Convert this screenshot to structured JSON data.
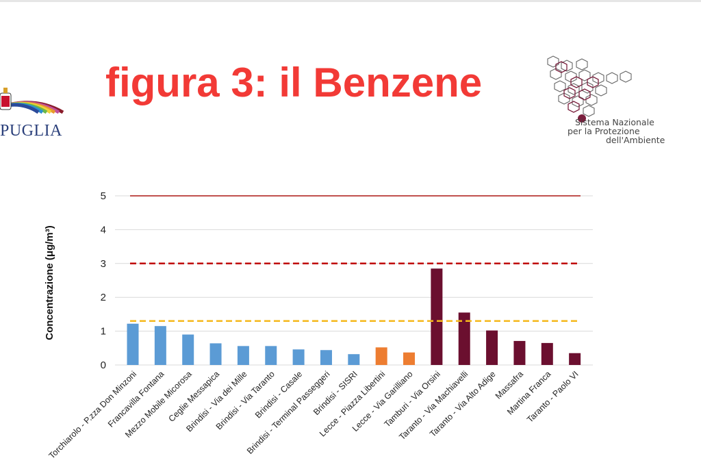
{
  "title": "figura 3: il Benzene",
  "logo_left": {
    "text": "PUGLIA"
  },
  "logo_right": {
    "lines": [
      "Sistema Nazionale",
      "per la Protezione",
      "dell'Ambiente"
    ]
  },
  "chart_data": {
    "type": "bar",
    "ylabel": "Concentrazione (μg/m³)",
    "ylim": [
      0,
      5
    ],
    "yticks": [
      "0",
      "1",
      "2",
      "3",
      "4",
      "5"
    ],
    "grid": true,
    "categories": [
      "Torchiarolo - P.zza Don Minzoni",
      "Francavilla Fontana",
      "Mezzo Mobile Micorosa",
      "Ceglie Messapica",
      "Brindisi - Via dei Mille",
      "Brindisi - Via Taranto",
      "Brindisi - Casale",
      "Brindisi - Terminal Passeggeri",
      "Brindisi - SISRI",
      "Lecce - Piazza Libertini",
      "Lecce - Via Garilliano",
      "Tamburi - Via Orsini",
      "Taranto - Via Machiavelli",
      "Taranto - Via Alto Adige",
      "Massafra",
      "Martina Franca",
      "Taranto - Paolo VI"
    ],
    "values": [
      1.22,
      1.15,
      0.9,
      0.64,
      0.56,
      0.56,
      0.46,
      0.44,
      0.32,
      0.52,
      0.37,
      2.85,
      1.55,
      1.02,
      0.71,
      0.65,
      0.35
    ],
    "bar_colors": [
      "#5b9bd5",
      "#5b9bd5",
      "#5b9bd5",
      "#5b9bd5",
      "#5b9bd5",
      "#5b9bd5",
      "#5b9bd5",
      "#5b9bd5",
      "#5b9bd5",
      "#ed7d31",
      "#ed7d31",
      "#6b0f2f",
      "#6b0f2f",
      "#6b0f2f",
      "#6b0f2f",
      "#6b0f2f",
      "#6b0f2f"
    ],
    "reference_lines": [
      {
        "value": 5,
        "style": "solid",
        "color": "#c0504d"
      },
      {
        "value": 3,
        "style": "dashed",
        "color": "#c00000"
      },
      {
        "value": 1.3,
        "style": "dashed",
        "color": "#f5b81c"
      }
    ]
  }
}
